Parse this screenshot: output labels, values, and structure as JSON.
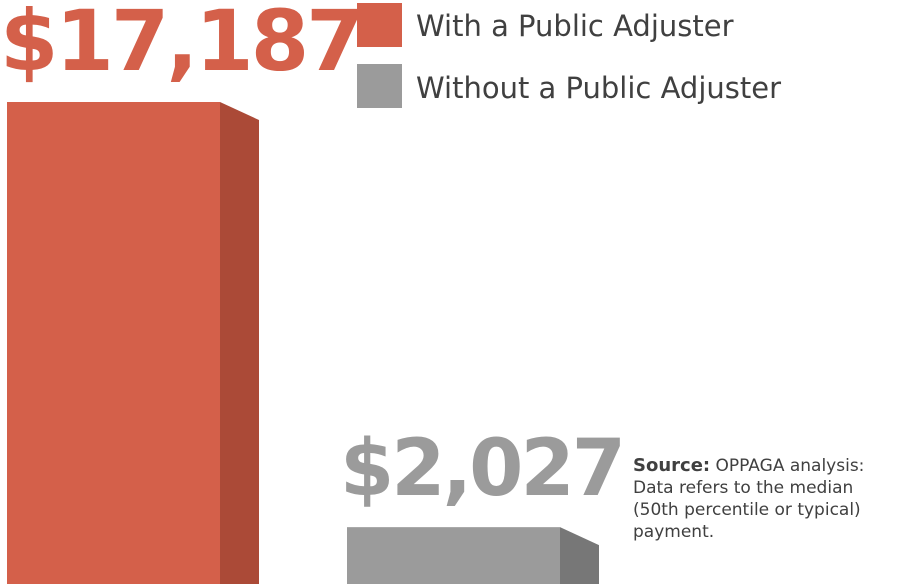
{
  "chart_data": {
    "type": "bar",
    "title": "",
    "xlabel": "",
    "ylabel": "",
    "ylim": [
      0,
      17187
    ],
    "grid": false,
    "legend_position": "top",
    "categories": [
      "With a Public Adjuster",
      "Without a Public Adjuster"
    ],
    "values": [
      17187,
      2027
    ],
    "value_labels": [
      "$17,187",
      "$2,027"
    ],
    "series": [
      {
        "name": "With a Public Adjuster",
        "value": 17187,
        "value_label": "$17,187",
        "color": "#d4604a",
        "side_color": "#ab4a37"
      },
      {
        "name": "Without a Public Adjuster",
        "value": 2027,
        "value_label": "$2,027",
        "color": "#9b9b9b",
        "side_color": "#777777"
      }
    ],
    "legend": [
      "With a Public Adjuster",
      "Without a Public Adjuster"
    ]
  },
  "source": {
    "label": "Source:",
    "text_first": "OPPAGA analysis:",
    "lines": [
      "Data refers to the median",
      "(50th percentile or typical)",
      "payment."
    ]
  },
  "colors": {
    "label_primary": "#d4604a",
    "label_secondary": "#9b9b9b",
    "text": "#404040"
  }
}
